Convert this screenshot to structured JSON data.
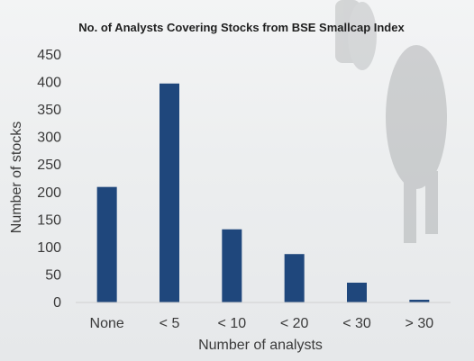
{
  "chart_data": {
    "type": "bar",
    "title": "No. of Analysts Covering Stocks from BSE Smallcap Index",
    "xlabel": "Number of analysts",
    "ylabel": "Number of stocks",
    "categories": [
      "None",
      "< 5",
      "< 10",
      "< 20",
      "< 30",
      "> 30"
    ],
    "values": [
      210,
      398,
      133,
      88,
      36,
      5
    ],
    "ylim": [
      0,
      450
    ],
    "yticks": [
      0,
      50,
      100,
      150,
      200,
      250,
      300,
      350,
      400,
      450
    ],
    "grid": false,
    "legend": "none",
    "bar_color": "#1f477c"
  }
}
